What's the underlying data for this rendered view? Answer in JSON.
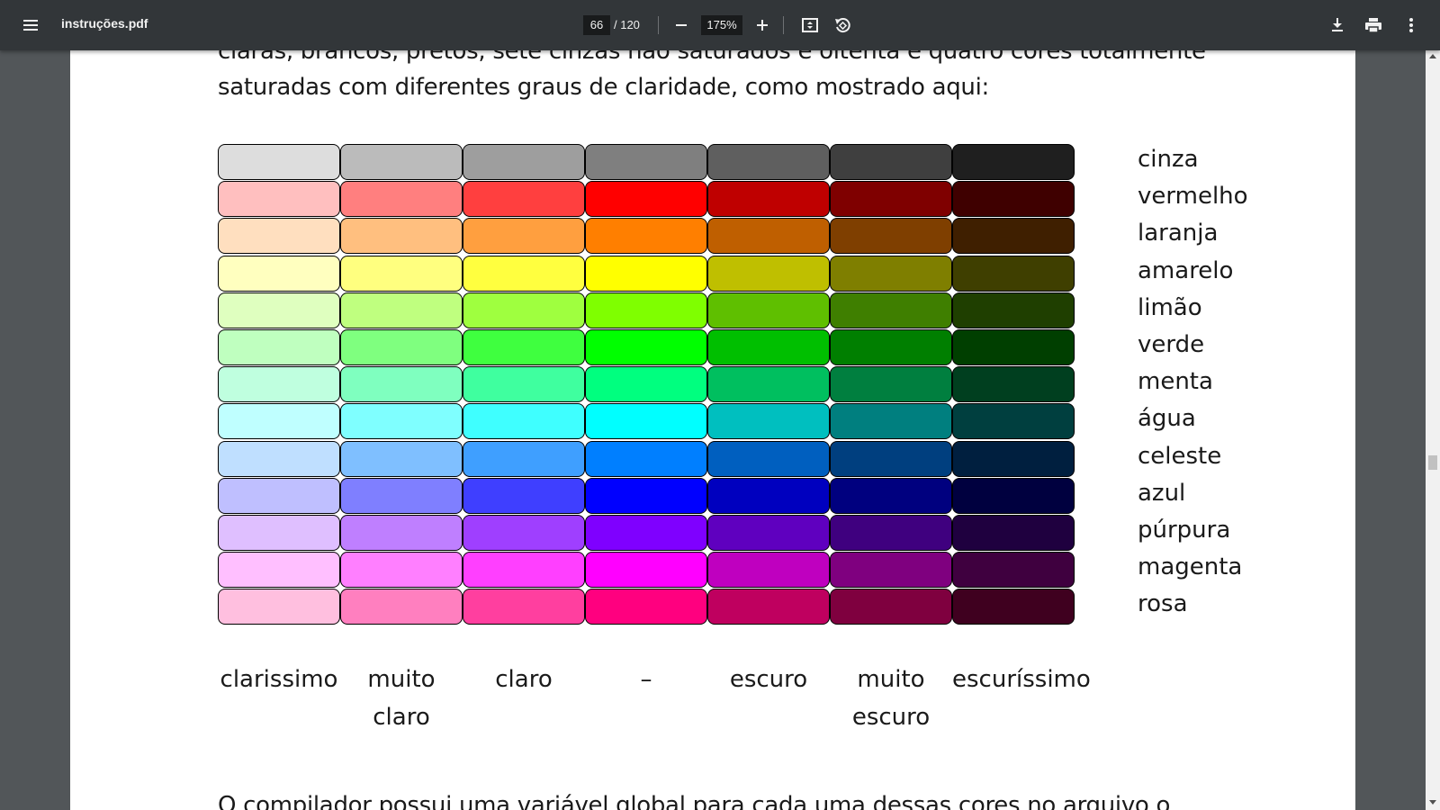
{
  "toolbar": {
    "title": "instruções.pdf",
    "page_current": "66",
    "page_total": "/ 120",
    "zoom": "175%",
    "icons": [
      "menu-icon",
      "zoom-out-icon",
      "zoom-in-icon",
      "fit-page-icon",
      "rotate-icon",
      "download-icon",
      "print-icon",
      "more-icon"
    ]
  },
  "document": {
    "line_top": "claras, brancos, pretos, sete cinzas não saturados e oitenta e quatro cores totalmente",
    "line_2": "saturadas com diferentes graus de claridade, como mostrado aqui:",
    "line_bottom": "O compilador possui uma variável global para cada uma dessas cores no arquivo o",
    "row_labels": [
      "cinza",
      "vermelho",
      "laranja",
      "amarelo",
      "limão",
      "verde",
      "menta",
      "água",
      "celeste",
      "azul",
      "púrpura",
      "magenta",
      "rosa"
    ],
    "col_labels": [
      "clarissimo",
      "muito claro",
      "claro",
      "–",
      "escuro",
      "muito escuro",
      "escuríssimo"
    ],
    "swatches": [
      [
        "#dddddd",
        "#bbbbbb",
        "#9e9e9e",
        "#7f7f7f",
        "#5f5f5f",
        "#3f3f3f",
        "#1f1f1f"
      ],
      [
        "#ffbfbf",
        "#ff7f7f",
        "#ff3f3f",
        "#ff0000",
        "#bf0000",
        "#7f0000",
        "#3f0000"
      ],
      [
        "#ffdfbf",
        "#ffbf7f",
        "#ff9f3f",
        "#ff7f00",
        "#bf5f00",
        "#7f3f00",
        "#3f1f00"
      ],
      [
        "#ffffbf",
        "#ffff7f",
        "#ffff3f",
        "#ffff00",
        "#bfbf00",
        "#7f7f00",
        "#3f3f00"
      ],
      [
        "#dfffbf",
        "#bfff7f",
        "#9fff3f",
        "#7fff00",
        "#5fbf00",
        "#3f7f00",
        "#1f3f00"
      ],
      [
        "#bfffbf",
        "#7fff7f",
        "#3fff3f",
        "#00ff00",
        "#00bf00",
        "#007f00",
        "#003f00"
      ],
      [
        "#bfffdf",
        "#7fffbf",
        "#3fff9f",
        "#00ff7f",
        "#00bf5f",
        "#007f3f",
        "#003f1f"
      ],
      [
        "#bfffff",
        "#7fffff",
        "#3fffff",
        "#00ffff",
        "#00bfbf",
        "#007f7f",
        "#003f3f"
      ],
      [
        "#bfdfff",
        "#7fbfff",
        "#3f9fff",
        "#007fff",
        "#005fbf",
        "#003f7f",
        "#001f3f"
      ],
      [
        "#bfbfff",
        "#7f7fff",
        "#3f3fff",
        "#0000ff",
        "#0000bf",
        "#00007f",
        "#00003f"
      ],
      [
        "#dfbfff",
        "#bf7fff",
        "#9f3fff",
        "#7f00ff",
        "#5f00bf",
        "#3f007f",
        "#1f003f"
      ],
      [
        "#ffbfff",
        "#ff7fff",
        "#ff3fff",
        "#ff00ff",
        "#bf00bf",
        "#7f007f",
        "#3f003f"
      ],
      [
        "#ffbfdf",
        "#ff7fbf",
        "#ff3f9f",
        "#ff007f",
        "#bf005f",
        "#7f003f",
        "#3f001f"
      ]
    ]
  }
}
